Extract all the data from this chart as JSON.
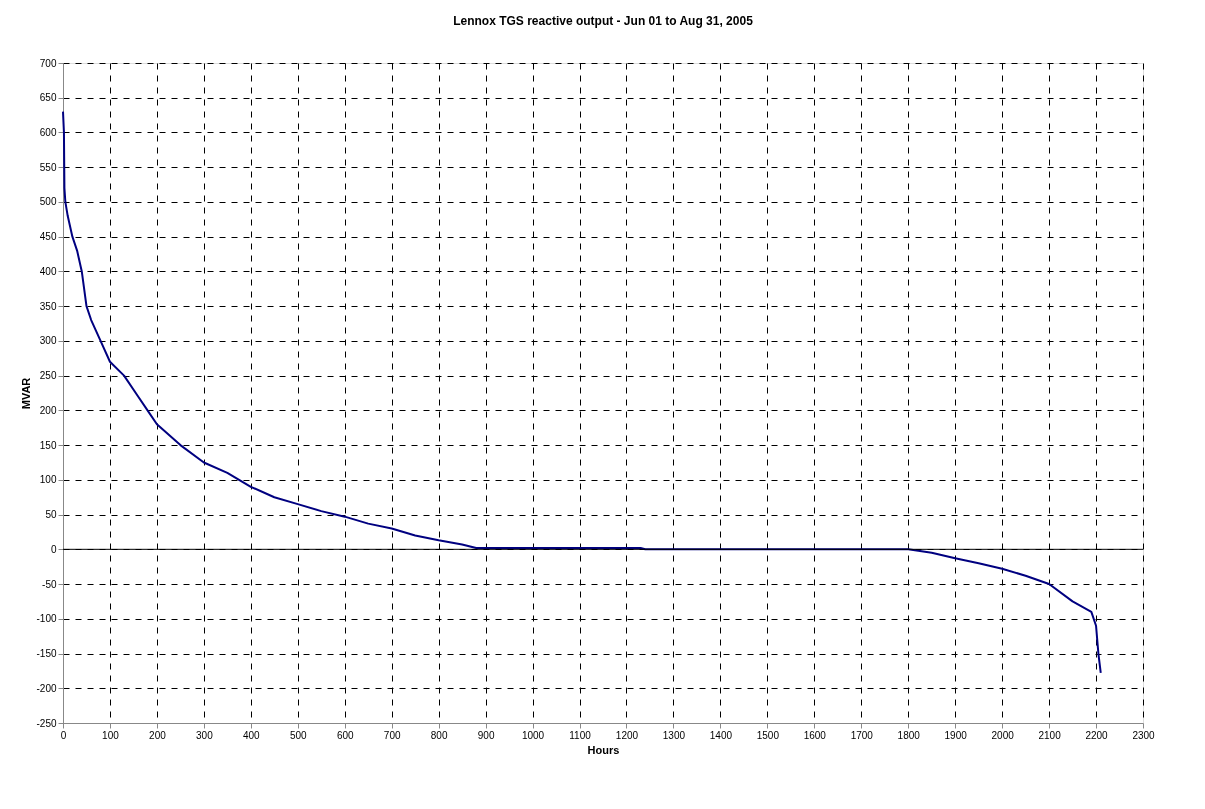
{
  "chart_data": {
    "type": "line",
    "title": "Lennox TGS reactive output - Jun 01 to Aug 31, 2005",
    "xlabel": "Hours",
    "ylabel": "MVAR",
    "xlim": [
      0,
      2300
    ],
    "xticks": [
      0,
      100,
      200,
      300,
      400,
      500,
      600,
      700,
      800,
      900,
      1000,
      1100,
      1200,
      1300,
      1400,
      1500,
      1600,
      1700,
      1800,
      1900,
      2000,
      2100,
      2200,
      2300
    ],
    "ylim": [
      -250,
      700
    ],
    "yticks": [
      -250,
      -200,
      -150,
      -100,
      -50,
      0,
      50,
      100,
      150,
      200,
      250,
      300,
      350,
      400,
      450,
      500,
      550,
      600,
      650,
      700
    ],
    "grid": true,
    "marker": "none",
    "line_style": "solid",
    "series": [
      {
        "color": "#000080",
        "x": [
          0,
          2,
          3,
          5,
          10,
          20,
          30,
          40,
          50,
          60,
          80,
          100,
          130,
          160,
          180,
          200,
          250,
          300,
          350,
          400,
          450,
          500,
          550,
          600,
          650,
          700,
          750,
          800,
          850,
          880,
          1000,
          1230,
          1240,
          1800,
          1850,
          1900,
          1950,
          2000,
          2050,
          2100,
          2150,
          2190,
          2200,
          2205,
          2210
        ],
        "values": [
          630,
          600,
          520,
          500,
          480,
          450,
          430,
          400,
          350,
          330,
          300,
          270,
          250,
          220,
          200,
          180,
          150,
          125,
          110,
          90,
          75,
          65,
          55,
          47,
          37,
          30,
          20,
          13,
          7,
          2,
          2,
          2,
          0,
          0,
          -5,
          -13,
          -20,
          -28,
          -38,
          -50,
          -75,
          -90,
          -110,
          -150,
          -178
        ]
      }
    ]
  }
}
